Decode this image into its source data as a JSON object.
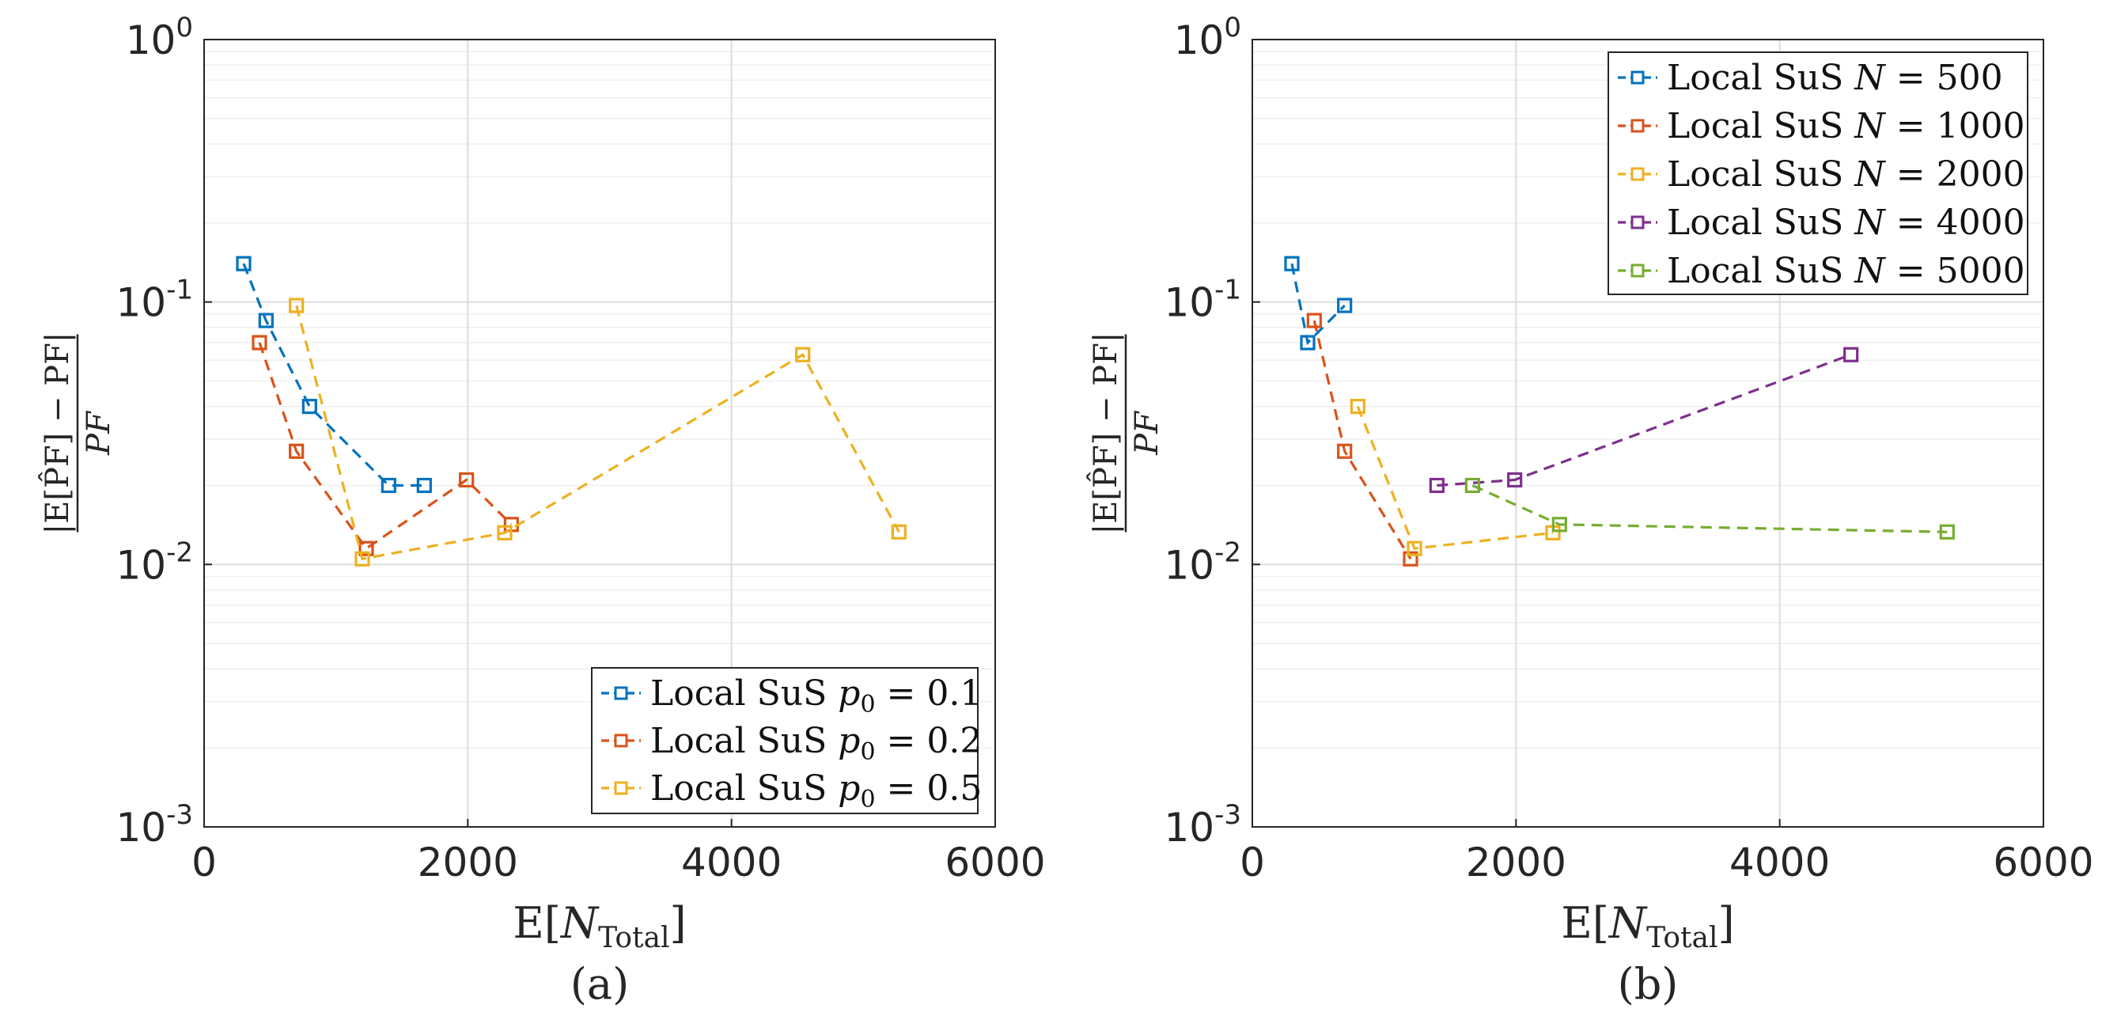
{
  "chart_data": [
    {
      "type": "line",
      "id": "a",
      "caption": "(a)",
      "xlabel": "E[N",
      "xlabel_sub": "Total",
      "xlabel_close": "]",
      "ylabel_num": "|E[P̂F] − PF|",
      "ylabel_den": "PF",
      "xlim": [
        0,
        6000
      ],
      "ylim": [
        0.001,
        1
      ],
      "yscale": "log",
      "x_ticks": [
        "0",
        "2000",
        "4000",
        "6000"
      ],
      "y_ticks": [
        {
          "base": "10",
          "exp": "0"
        },
        {
          "base": "10",
          "exp": "-1"
        },
        {
          "base": "10",
          "exp": "-2"
        },
        {
          "base": "10",
          "exp": "-3"
        }
      ],
      "grid": true,
      "legend_position": "bottom-right",
      "series": [
        {
          "name": "Local SuS p0 = 0.1",
          "label_prefix": "Local SuS ",
          "label_var": "p",
          "label_sub": "0",
          "label_eq": " = 0.1",
          "color": "#0072BD",
          "x": [
            300,
            470,
            800,
            1400,
            1670
          ],
          "y": [
            0.14,
            0.085,
            0.04,
            0.02,
            0.02
          ]
        },
        {
          "name": "Local SuS p0 = 0.2",
          "label_prefix": "Local SuS ",
          "label_var": "p",
          "label_sub": "0",
          "label_eq": " = 0.2",
          "color": "#D95319",
          "x": [
            420,
            700,
            1230,
            1990,
            2330
          ],
          "y": [
            0.07,
            0.027,
            0.0115,
            0.021,
            0.0142
          ]
        },
        {
          "name": "Local SuS p0 = 0.5",
          "label_prefix": "Local SuS ",
          "label_var": "p",
          "label_sub": "0",
          "label_eq": " = 0.5",
          "color": "#EDB120",
          "x": [
            700,
            1200,
            2280,
            4540,
            5270
          ],
          "y": [
            0.097,
            0.0105,
            0.0132,
            0.063,
            0.0133
          ]
        }
      ]
    },
    {
      "type": "line",
      "id": "b",
      "caption": "(b)",
      "xlabel": "E[N",
      "xlabel_sub": "Total",
      "xlabel_close": "]",
      "ylabel_num": "|E[P̂F] − PF|",
      "ylabel_den": "PF",
      "xlim": [
        0,
        6000
      ],
      "ylim": [
        0.001,
        1
      ],
      "yscale": "log",
      "x_ticks": [
        "0",
        "2000",
        "4000",
        "6000"
      ],
      "y_ticks": [
        {
          "base": "10",
          "exp": "0"
        },
        {
          "base": "10",
          "exp": "-1"
        },
        {
          "base": "10",
          "exp": "-2"
        },
        {
          "base": "10",
          "exp": "-3"
        }
      ],
      "grid": true,
      "legend_position": "top-right",
      "series": [
        {
          "name": "Local SuS N = 500",
          "label_prefix": "Local SuS ",
          "label_var": "N",
          "label_sub": "",
          "label_eq": " = 500",
          "color": "#0072BD",
          "x": [
            300,
            420,
            700
          ],
          "y": [
            0.14,
            0.07,
            0.097
          ]
        },
        {
          "name": "Local SuS N = 1000",
          "label_prefix": "Local SuS ",
          "label_var": "N",
          "label_sub": "",
          "label_eq": " = 1000",
          "color": "#D95319",
          "x": [
            470,
            700,
            1200
          ],
          "y": [
            0.085,
            0.027,
            0.0105
          ]
        },
        {
          "name": "Local SuS N = 2000",
          "label_prefix": "Local SuS ",
          "label_var": "N",
          "label_sub": "",
          "label_eq": " = 2000",
          "color": "#EDB120",
          "x": [
            800,
            1230,
            2280
          ],
          "y": [
            0.04,
            0.0115,
            0.0132
          ]
        },
        {
          "name": "Local SuS N = 4000",
          "label_prefix": "Local SuS ",
          "label_var": "N",
          "label_sub": "",
          "label_eq": " = 4000",
          "color": "#7E2F8E",
          "x": [
            1400,
            1990,
            4540
          ],
          "y": [
            0.02,
            0.021,
            0.063
          ]
        },
        {
          "name": "Local SuS N = 5000",
          "label_prefix": "Local SuS ",
          "label_var": "N",
          "label_sub": "",
          "label_eq": " = 5000",
          "color": "#77AC30",
          "x": [
            1670,
            2330,
            5270
          ],
          "y": [
            0.02,
            0.0142,
            0.0133
          ]
        }
      ]
    }
  ]
}
